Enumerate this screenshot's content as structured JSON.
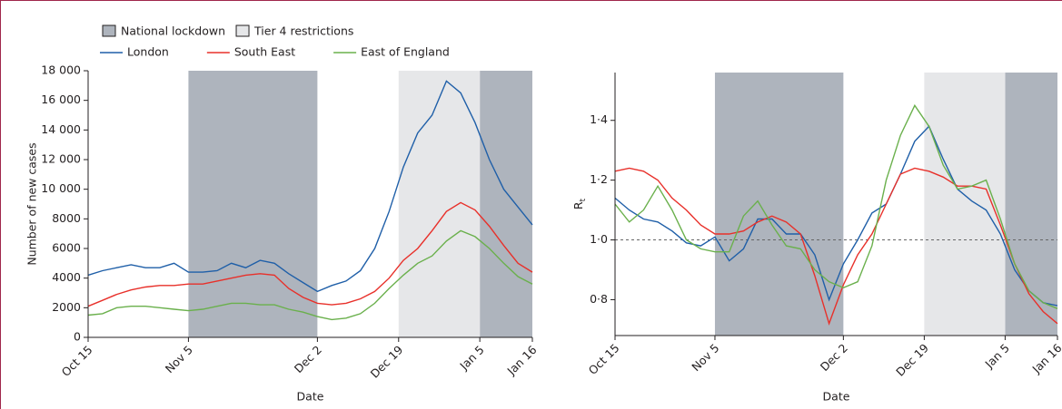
{
  "chart_data": [
    {
      "type": "line",
      "ylabel": "Number of new cases",
      "xlabel": "Date",
      "ylim": [
        0,
        18000
      ],
      "yticks": [
        0,
        2000,
        4000,
        6000,
        8000,
        {
          "value": 10000,
          "label": "10 000"
        },
        {
          "value": 12000,
          "label": "12 000"
        },
        {
          "value": 14000,
          "label": "14 000"
        },
        {
          "value": 16000,
          "label": "16 000"
        },
        {
          "value": 18000,
          "label": "18 000"
        }
      ],
      "xticks": [
        "Oct 15",
        "Nov 5",
        "Dec 2",
        "Dec 19",
        "Jan 5",
        "Jan 16"
      ],
      "regions": [
        {
          "name": "National lockdown",
          "color": "#aeb4bd",
          "spans": [
            [
              "Nov 5",
              "Dec 2"
            ],
            [
              "Jan 5",
              "Jan 16"
            ]
          ]
        },
        {
          "name": "Tier 4 restrictions",
          "color": "#e6e7e9",
          "spans": [
            [
              "Dec 19",
              "Jan 5"
            ]
          ]
        }
      ],
      "x": [
        "Oct 15",
        "Oct 18",
        "Oct 21",
        "Oct 24",
        "Oct 27",
        "Oct 30",
        "Nov 2",
        "Nov 5",
        "Nov 8",
        "Nov 11",
        "Nov 14",
        "Nov 17",
        "Nov 20",
        "Nov 23",
        "Nov 26",
        "Nov 29",
        "Dec 2",
        "Dec 5",
        "Dec 8",
        "Dec 11",
        "Dec 14",
        "Dec 17",
        "Dec 20",
        "Dec 23",
        "Dec 26",
        "Dec 29",
        "Jan 1",
        "Jan 4",
        "Jan 7",
        "Jan 10",
        "Jan 13",
        "Jan 16"
      ],
      "series": [
        {
          "name": "London",
          "color": "#1f5fa8",
          "values": [
            4200,
            4500,
            4700,
            4900,
            4700,
            4700,
            5000,
            4400,
            4400,
            4500,
            5000,
            4700,
            5200,
            5000,
            4300,
            3700,
            3100,
            3500,
            3800,
            4500,
            6000,
            8500,
            11500,
            13800,
            15000,
            17300,
            16500,
            14500,
            12000,
            10000,
            8800,
            7600
          ]
        },
        {
          "name": "South East",
          "color": "#e8302a",
          "values": [
            2100,
            2500,
            2900,
            3200,
            3400,
            3500,
            3500,
            3600,
            3600,
            3800,
            4000,
            4200,
            4300,
            4200,
            3300,
            2700,
            2300,
            2200,
            2300,
            2600,
            3100,
            4000,
            5200,
            6000,
            7200,
            8500,
            9100,
            8600,
            7500,
            6200,
            5000,
            4400
          ]
        },
        {
          "name": "East of England",
          "color": "#6ab04c",
          "values": [
            1500,
            1600,
            2000,
            2100,
            2100,
            2000,
            1900,
            1800,
            1900,
            2100,
            2300,
            2300,
            2200,
            2200,
            1900,
            1700,
            1400,
            1200,
            1300,
            1600,
            2300,
            3300,
            4200,
            5000,
            5500,
            6500,
            7200,
            6800,
            6000,
            5000,
            4100,
            3600
          ]
        }
      ]
    },
    {
      "type": "line",
      "ylabel": {
        "main": "R",
        "sub": "t"
      },
      "xlabel": "Date",
      "ylim": [
        0.68,
        1.56
      ],
      "yticks": [
        {
          "value": 0.8,
          "label": "0·8"
        },
        {
          "value": 1.0,
          "label": "1·0"
        },
        {
          "value": 1.2,
          "label": "1·2"
        },
        {
          "value": 1.4,
          "label": "1·4"
        }
      ],
      "reference_line": 1,
      "xticks": [
        "Oct 15",
        "Nov 5",
        "Dec 2",
        "Dec 19",
        "Jan 5",
        "Jan 16"
      ],
      "regions": [
        {
          "color": "#aeb4bd",
          "spans": [
            [
              "Nov 5",
              "Dec 2"
            ],
            [
              "Jan 5",
              "Jan 16"
            ]
          ]
        },
        {
          "color": "#e6e7e9",
          "spans": [
            [
              "Dec 19",
              "Jan 5"
            ]
          ]
        }
      ],
      "x": [
        "Oct 15",
        "Oct 18",
        "Oct 21",
        "Oct 24",
        "Oct 27",
        "Oct 30",
        "Nov 2",
        "Nov 5",
        "Nov 8",
        "Nov 11",
        "Nov 14",
        "Nov 17",
        "Nov 20",
        "Nov 23",
        "Nov 26",
        "Nov 29",
        "Dec 2",
        "Dec 5",
        "Dec 8",
        "Dec 11",
        "Dec 14",
        "Dec 17",
        "Dec 20",
        "Dec 23",
        "Dec 26",
        "Dec 29",
        "Jan 1",
        "Jan 4",
        "Jan 7",
        "Jan 10",
        "Jan 13",
        "Jan 16"
      ],
      "series": [
        {
          "color": "#1f5fa8",
          "values": [
            1.14,
            1.1,
            1.07,
            1.06,
            1.03,
            0.99,
            0.98,
            1.01,
            0.93,
            0.97,
            1.07,
            1.07,
            1.02,
            1.02,
            0.95,
            0.8,
            0.92,
            1.0,
            1.09,
            1.12,
            1.22,
            1.33,
            1.38,
            1.27,
            1.17,
            1.13,
            1.1,
            1.02,
            0.9,
            0.83,
            0.79,
            0.78
          ]
        },
        {
          "color": "#e8302a",
          "values": [
            1.23,
            1.24,
            1.23,
            1.2,
            1.14,
            1.1,
            1.05,
            1.02,
            1.02,
            1.03,
            1.06,
            1.08,
            1.06,
            1.02,
            0.88,
            0.72,
            0.85,
            0.95,
            1.02,
            1.12,
            1.22,
            1.24,
            1.23,
            1.21,
            1.18,
            1.18,
            1.17,
            1.05,
            0.92,
            0.82,
            0.76,
            0.72
          ]
        },
        {
          "color": "#6ab04c",
          "values": [
            1.12,
            1.06,
            1.1,
            1.18,
            1.1,
            1.0,
            0.97,
            0.96,
            0.96,
            1.08,
            1.13,
            1.05,
            0.98,
            0.97,
            0.9,
            0.86,
            0.84,
            0.86,
            0.98,
            1.2,
            1.35,
            1.45,
            1.38,
            1.25,
            1.17,
            1.18,
            1.2,
            1.07,
            0.92,
            0.83,
            0.79,
            0.77
          ]
        }
      ]
    }
  ]
}
